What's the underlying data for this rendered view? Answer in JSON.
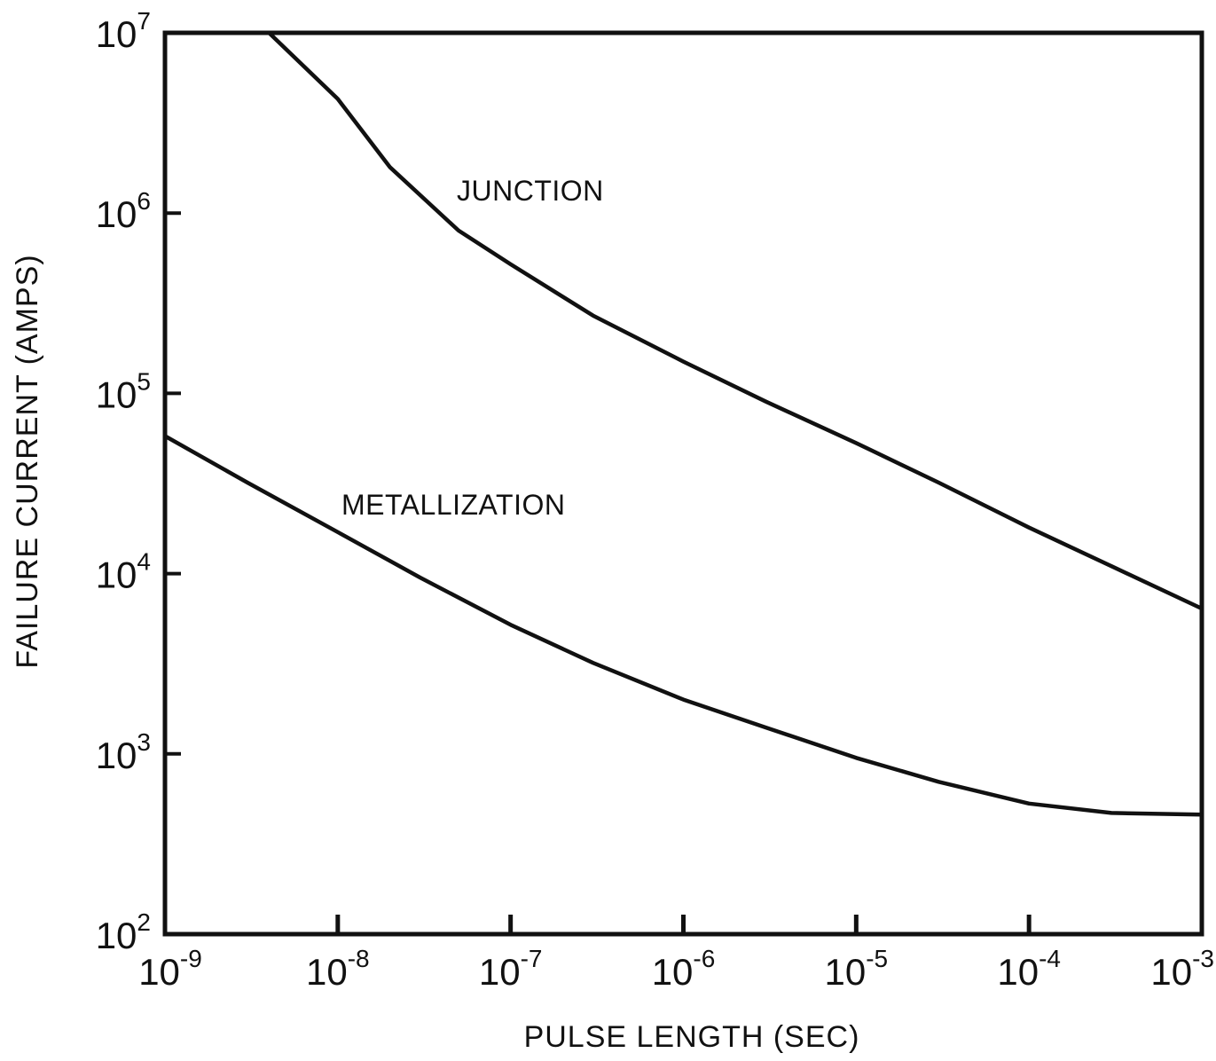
{
  "chart_data": {
    "type": "line",
    "xlabel": "PULSE LENGTH (SEC)",
    "ylabel": "FAILURE CURRENT (AMPS)",
    "x_scale": "log",
    "y_scale": "log",
    "xlim": [
      1e-09,
      0.001
    ],
    "ylim": [
      100,
      10000000
    ],
    "grid": false,
    "x_ticks": [
      {
        "value": 1e-09,
        "base": "10",
        "exp": "-9"
      },
      {
        "value": 1e-08,
        "base": "10",
        "exp": "-8"
      },
      {
        "value": 1e-07,
        "base": "10",
        "exp": "-7"
      },
      {
        "value": 1e-06,
        "base": "10",
        "exp": "-6"
      },
      {
        "value": 1e-05,
        "base": "10",
        "exp": "-5"
      },
      {
        "value": 0.0001,
        "base": "10",
        "exp": "-4"
      },
      {
        "value": 0.001,
        "base": "10",
        "exp": "-3"
      }
    ],
    "y_ticks": [
      {
        "value": 100,
        "base": "10",
        "exp": "2"
      },
      {
        "value": 1000,
        "base": "10",
        "exp": "3"
      },
      {
        "value": 10000,
        "base": "10",
        "exp": "4"
      },
      {
        "value": 100000,
        "base": "10",
        "exp": "5"
      },
      {
        "value": 1000000,
        "base": "10",
        "exp": "6"
      },
      {
        "value": 10000000,
        "base": "10",
        "exp": "7"
      }
    ],
    "series": [
      {
        "name": "JUNCTION",
        "x": [
          4e-09,
          1e-08,
          2e-08,
          5e-08,
          1e-07,
          3e-07,
          1e-06,
          3e-06,
          1e-05,
          3e-05,
          0.0001,
          0.0003,
          0.001
        ],
        "y": [
          10000000,
          4300000,
          1800000,
          800000,
          520000,
          270000,
          150000,
          90000,
          53000,
          32000,
          18000,
          11000,
          6400
        ]
      },
      {
        "name": "METALLIZATION",
        "x": [
          1e-09,
          3e-09,
          1e-08,
          3e-08,
          1e-07,
          3e-07,
          1e-06,
          3e-06,
          1e-05,
          3e-05,
          0.0001,
          0.0003,
          0.001
        ],
        "y": [
          58000,
          32000,
          17000,
          9500,
          5200,
          3200,
          2000,
          1400,
          950,
          700,
          530,
          470,
          460
        ]
      }
    ]
  }
}
